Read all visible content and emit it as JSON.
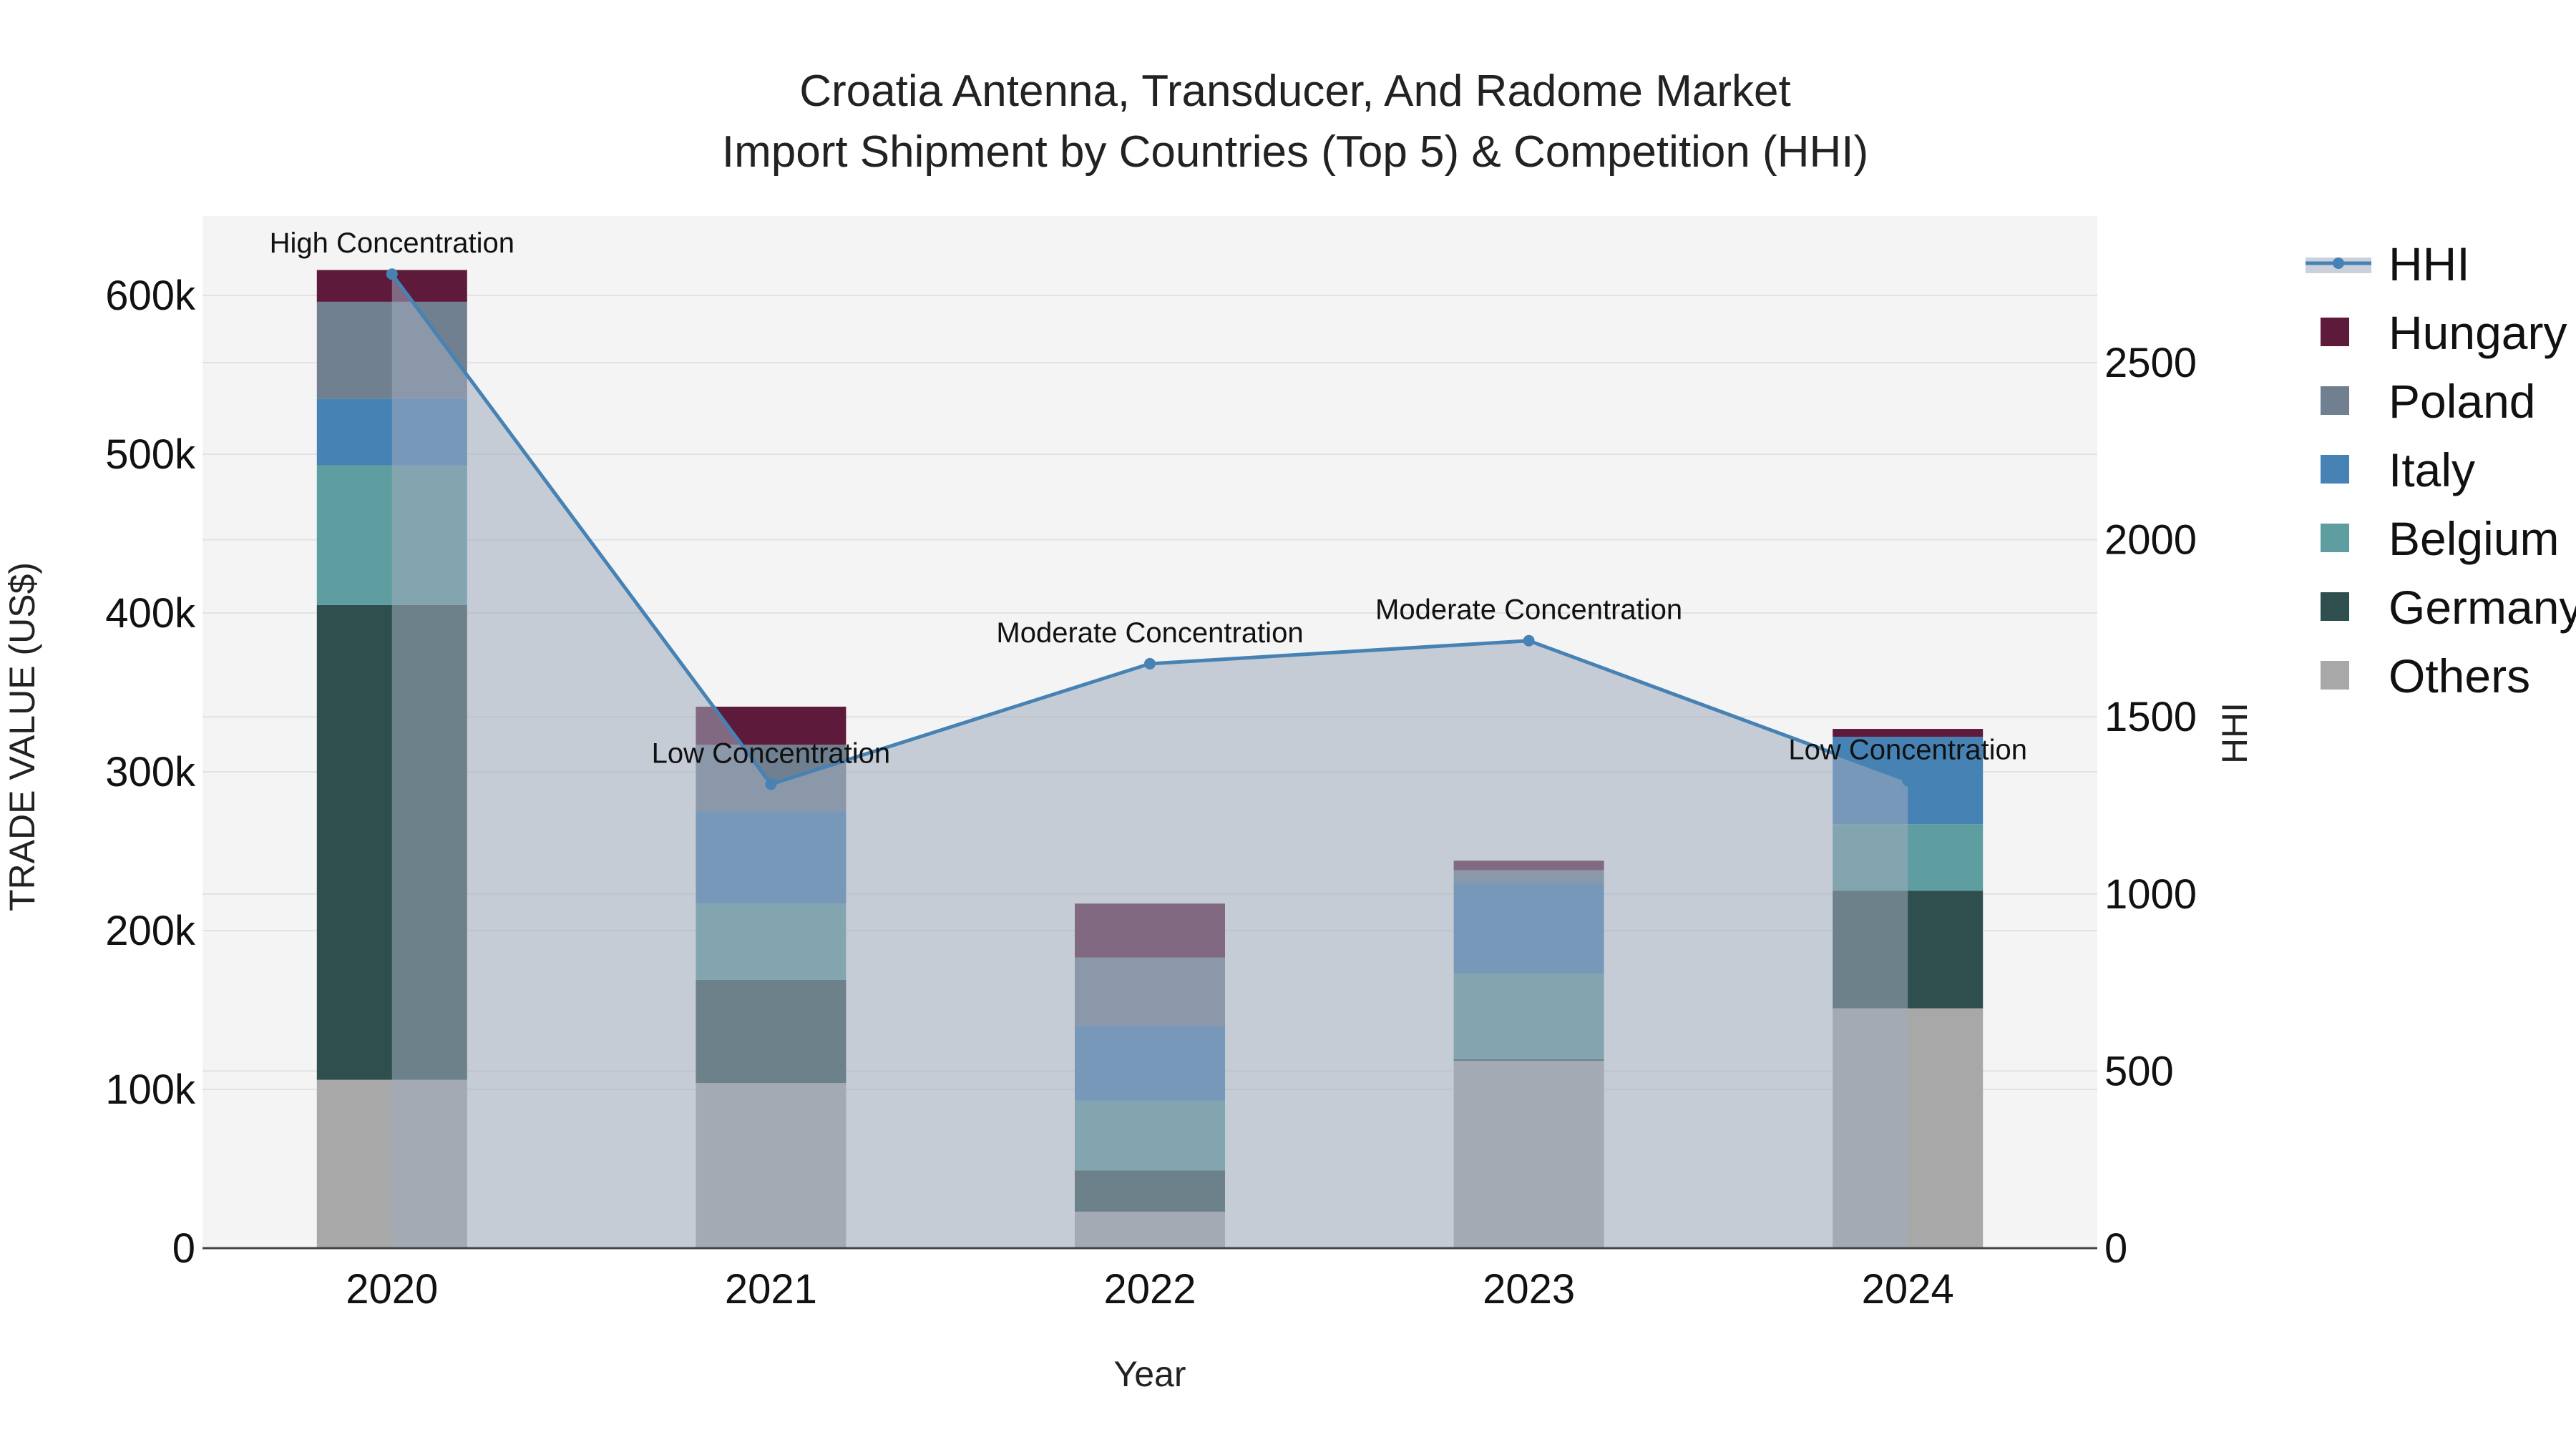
{
  "chart_data": {
    "type": "bar",
    "title_line1": "Croatia Antenna, Transducer, And Radome Market",
    "title_line2": "Import Shipment by Countries (Top 5) & Competition (HHI)",
    "xlabel": "Year",
    "ylabel": "TRADE VALUE (US$)",
    "y2label": "HHI",
    "categories": [
      "2020",
      "2021",
      "2022",
      "2023",
      "2024"
    ],
    "ylim": [
      0,
      650000
    ],
    "y_ticks": [
      0,
      100000,
      200000,
      300000,
      400000,
      500000,
      600000
    ],
    "y_tick_labels": [
      "0",
      "100k",
      "200k",
      "300k",
      "400k",
      "500k",
      "600k"
    ],
    "y2lim": [
      0,
      2914
    ],
    "y2_ticks": [
      0,
      500,
      1000,
      1500,
      2000,
      2500
    ],
    "y2_tick_labels": [
      "0",
      "500",
      "1000",
      "1500",
      "2000",
      "2500"
    ],
    "series": [
      {
        "name": "Others",
        "color": "#A8A8A8",
        "values": [
          106000,
          104000,
          23000,
          118000,
          151000
        ]
      },
      {
        "name": "Germany",
        "color": "#2F4F4F",
        "values": [
          299000,
          65000,
          26000,
          1000,
          74000
        ]
      },
      {
        "name": "Belgium",
        "color": "#5F9EA0",
        "values": [
          88000,
          48000,
          44000,
          54000,
          42000
        ]
      },
      {
        "name": "Italy",
        "color": "#4682B4",
        "values": [
          42000,
          58000,
          47000,
          57000,
          55000
        ]
      },
      {
        "name": "Poland",
        "color": "#708090",
        "values": [
          61000,
          42000,
          43000,
          8000,
          0
        ]
      },
      {
        "name": "Hungary",
        "color": "#5E1A3A",
        "values": [
          20000,
          24000,
          34000,
          6000,
          5000
        ]
      }
    ],
    "hhi": {
      "name": "HHI",
      "color": "#4682B4",
      "fill": "rgba(160,172,190,0.55)",
      "values": [
        2750,
        1310,
        1650,
        1715,
        1320
      ],
      "annotations": [
        "High Concentration",
        "Low Concentration",
        "Moderate Concentration",
        "Moderate Concentration",
        "Low Concentration"
      ]
    },
    "legend": [
      "HHI",
      "Hungary",
      "Poland",
      "Italy",
      "Belgium",
      "Germany",
      "Others"
    ]
  }
}
